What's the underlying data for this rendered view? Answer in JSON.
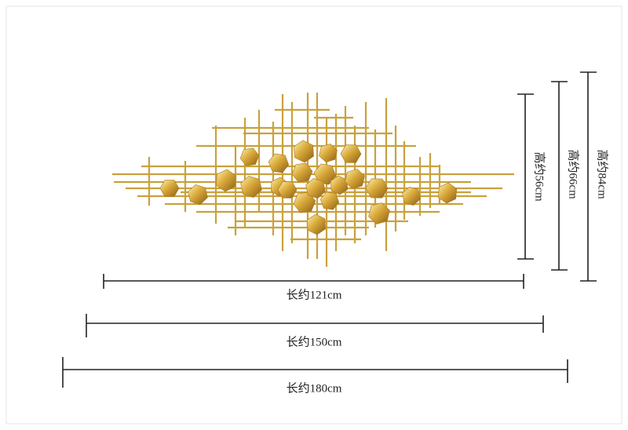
{
  "dimensions": {
    "widths": [
      "长约121cm",
      "长约150cm",
      "长约180cm"
    ],
    "heights": [
      "高约56cm",
      "高约66cm",
      "高约84cm"
    ]
  }
}
